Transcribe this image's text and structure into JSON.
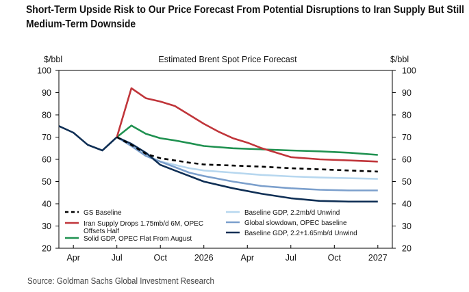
{
  "headline": {
    "line1": "Short-Term Upside Risk to Our Price Forecast From Potential Disruptions to Iran Supply But Still",
    "line2": "Medium-Term Downside"
  },
  "source": "Source: Goldman Sachs Global Investment Research",
  "colors": {
    "gs_baseline": "#000000",
    "iran": "#c0353a",
    "solid_gdp": "#1f9150",
    "baseline_gdp": "#b7d7ef",
    "global_slowdown": "#7b9fcc",
    "baseline_unwind": "#0f2f55"
  },
  "chart_data": {
    "type": "line",
    "title": "Estimated Brent Spot Price Forecast",
    "ylabel_left": "$/bbl",
    "ylabel_right": "$/bbl",
    "ylim": [
      20,
      100
    ],
    "yticks": [
      20,
      30,
      40,
      50,
      60,
      70,
      80,
      90,
      100
    ],
    "xlim": [
      0,
      23
    ],
    "xticks": [
      {
        "x": 1,
        "label": "Apr"
      },
      {
        "x": 4,
        "label": "Jul"
      },
      {
        "x": 7,
        "label": "Oct"
      },
      {
        "x": 10,
        "label": "2026"
      },
      {
        "x": 13,
        "label": "Apr"
      },
      {
        "x": 16,
        "label": "Jul"
      },
      {
        "x": 19,
        "label": "Oct"
      },
      {
        "x": 22,
        "label": "2027"
      }
    ],
    "series": [
      {
        "name": "Baseline GDP, 2.2mb/d Unwind",
        "key": "baseline_gdp",
        "style": "solid",
        "x": [
          4,
          5,
          6,
          7,
          8,
          9,
          10,
          12,
          14,
          16,
          18,
          20,
          22
        ],
        "values": [
          70,
          66,
          62,
          59,
          57.5,
          56,
          55,
          54,
          53,
          52.3,
          51.8,
          51.5,
          51.2
        ]
      },
      {
        "name": "Global slowdown, OPEC baseline",
        "key": "global_slowdown",
        "style": "solid",
        "x": [
          4,
          5,
          6,
          7,
          8,
          9,
          10,
          12,
          14,
          16,
          18,
          20,
          22
        ],
        "values": [
          70,
          66,
          61.5,
          59,
          56.5,
          54,
          52.5,
          50,
          48,
          47,
          46.3,
          46,
          46
        ]
      },
      {
        "name": "Baseline GDP, 2.2+1.65mb/d Unwind",
        "key": "baseline_unwind",
        "style": "solid",
        "x": [
          0,
          1,
          2,
          3,
          4,
          5,
          6,
          7,
          8,
          9,
          10,
          12,
          14,
          16,
          18,
          20,
          22
        ],
        "values": [
          75,
          72,
          66.5,
          64,
          70,
          67,
          63,
          57.5,
          55,
          52.5,
          50,
          47,
          44.5,
          42.5,
          41.3,
          41,
          41
        ]
      },
      {
        "name": "Solid GDP, OPEC Flat From August",
        "key": "solid_gdp",
        "style": "solid",
        "x": [
          4,
          5,
          6,
          7,
          8,
          9,
          10,
          12,
          14,
          16,
          18,
          20,
          22
        ],
        "values": [
          70,
          75.2,
          71.5,
          69.5,
          68.5,
          67.3,
          66,
          65,
          64.5,
          64,
          63.6,
          63,
          62
        ]
      },
      {
        "name": "Iran Supply Drops 1.75mb/d 6M, OPEC Offsets Half",
        "key": "iran",
        "style": "solid",
        "x": [
          4,
          5,
          6,
          7,
          8,
          9,
          10,
          11,
          12,
          13,
          14,
          15,
          16,
          18,
          20,
          22
        ],
        "values": [
          70,
          92,
          87.5,
          86,
          84,
          80,
          76,
          72.5,
          69.5,
          67.5,
          65,
          63,
          61,
          60,
          59.5,
          59
        ]
      },
      {
        "name": "GS Baseline",
        "key": "gs_baseline",
        "style": "dashed",
        "x": [
          4,
          5,
          6,
          7,
          8,
          9,
          10,
          12,
          14,
          16,
          18,
          20,
          22
        ],
        "values": [
          70,
          66.5,
          62.5,
          60.5,
          59.5,
          58.5,
          57.7,
          57.2,
          56.7,
          56,
          55.5,
          55,
          54.5
        ]
      }
    ],
    "legend": {
      "placement": "bottom-inside",
      "left": [
        {
          "label": "GS Baseline",
          "key": "gs_baseline",
          "style": "dashed"
        },
        {
          "label": "Iran Supply Drops 1.75mb/d 6M, OPEC Offsets Half",
          "key": "iran",
          "style": "solid"
        },
        {
          "label": "Solid GDP, OPEC Flat From August",
          "key": "solid_gdp",
          "style": "solid"
        }
      ],
      "right": [
        {
          "label": "Baseline GDP, 2.2mb/d Unwind",
          "key": "baseline_gdp",
          "style": "solid"
        },
        {
          "label": "Global slowdown, OPEC baseline",
          "key": "global_slowdown",
          "style": "solid"
        },
        {
          "label": "Baseline GDP, 2.2+1.65mb/d Unwind",
          "key": "baseline_unwind",
          "style": "solid"
        }
      ]
    }
  }
}
